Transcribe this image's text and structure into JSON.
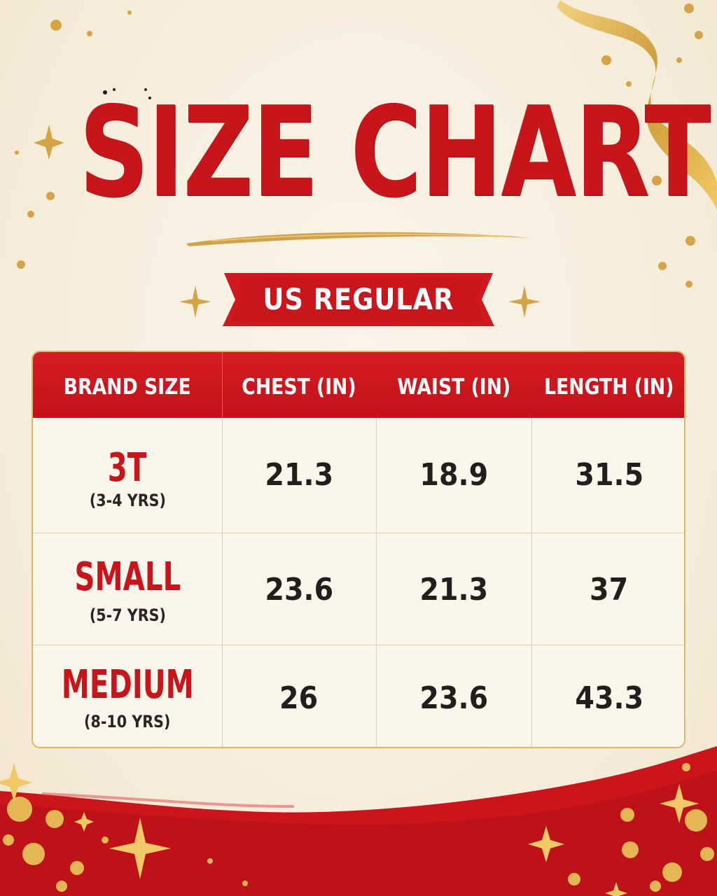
{
  "title": "SIZE CHART",
  "subtitle": "US REGULAR",
  "table": {
    "headers": [
      "BRAND SIZE",
      "CHEST (IN)",
      "WAIST (IN)",
      "LENGTH (IN)"
    ],
    "rows": [
      {
        "size": "3T",
        "age": "(3-4 YRS)",
        "chest": "21.3",
        "waist": "18.9",
        "length": "31.5"
      },
      {
        "size": "SMALL",
        "age": "(5-7 YRS)",
        "chest": "23.6",
        "waist": "21.3",
        "length": "37"
      },
      {
        "size": "MEDIUM",
        "age": "(8-10 YRS)",
        "chest": "26",
        "waist": "23.6",
        "length": "43.3"
      }
    ]
  },
  "colors": {
    "red": "#c8141b",
    "gold": "#d7a84a",
    "cream": "#f8f0e0",
    "text_dark": "#231e1e"
  },
  "icons": [
    "gold-sparkle-icon",
    "gold-ribbon-icon",
    "confetti-dot-icon"
  ]
}
